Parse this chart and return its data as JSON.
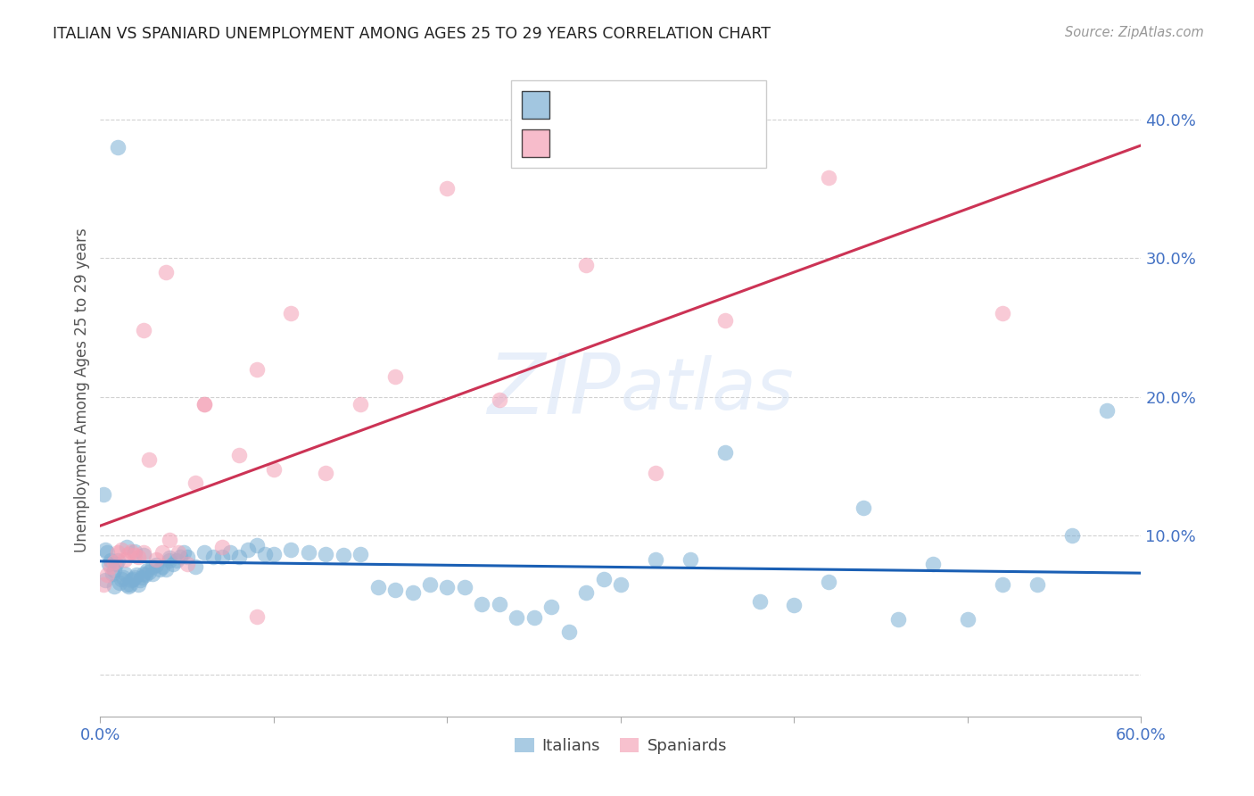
{
  "title": "ITALIAN VS SPANIARD UNEMPLOYMENT AMONG AGES 25 TO 29 YEARS CORRELATION CHART",
  "source": "Source: ZipAtlas.com",
  "ylabel": "Unemployment Among Ages 25 to 29 years",
  "xlim": [
    0.0,
    0.6
  ],
  "ylim": [
    -0.03,
    0.44
  ],
  "yticks": [
    0.0,
    0.1,
    0.2,
    0.3,
    0.4
  ],
  "ytick_labels": [
    "",
    "10.0%",
    "20.0%",
    "30.0%",
    "40.0%"
  ],
  "xticks": [
    0.0,
    0.1,
    0.2,
    0.3,
    0.4,
    0.5,
    0.6
  ],
  "xtick_labels": [
    "0.0%",
    "",
    "",
    "",
    "",
    "",
    "60.0%"
  ],
  "legend_label1": "Italians",
  "legend_label2": "Spaniards",
  "italian_color": "#7bafd4",
  "spaniard_color": "#f4a0b5",
  "trendline_italian_color": "#1a5fb4",
  "trendline_spaniard_color": "#cc3355",
  "watermark": "ZIPatlas",
  "background_color": "#ffffff",
  "axis_color": "#4472C4",
  "legend_text_color": "#333333",
  "legend_value_color": "#4472C4",
  "title_color": "#222222",
  "italians_x": [
    0.002,
    0.003,
    0.004,
    0.005,
    0.006,
    0.007,
    0.008,
    0.009,
    0.01,
    0.011,
    0.012,
    0.013,
    0.014,
    0.015,
    0.016,
    0.017,
    0.018,
    0.019,
    0.02,
    0.021,
    0.022,
    0.023,
    0.024,
    0.025,
    0.026,
    0.027,
    0.028,
    0.03,
    0.032,
    0.034,
    0.036,
    0.038,
    0.04,
    0.042,
    0.044,
    0.046,
    0.048,
    0.05,
    0.055,
    0.06,
    0.065,
    0.07,
    0.075,
    0.08,
    0.085,
    0.09,
    0.095,
    0.1,
    0.11,
    0.12,
    0.13,
    0.14,
    0.15,
    0.16,
    0.17,
    0.18,
    0.19,
    0.2,
    0.21,
    0.22,
    0.23,
    0.24,
    0.25,
    0.26,
    0.27,
    0.28,
    0.29,
    0.3,
    0.32,
    0.34,
    0.36,
    0.38,
    0.4,
    0.42,
    0.44,
    0.46,
    0.48,
    0.5,
    0.52,
    0.54,
    0.56,
    0.58,
    0.003,
    0.008,
    0.015,
    0.02,
    0.025,
    0.03,
    0.04,
    0.01
  ],
  "italians_y": [
    0.13,
    0.09,
    0.088,
    0.08,
    0.082,
    0.073,
    0.075,
    0.08,
    0.082,
    0.066,
    0.069,
    0.07,
    0.073,
    0.065,
    0.064,
    0.065,
    0.068,
    0.069,
    0.07,
    0.072,
    0.065,
    0.068,
    0.07,
    0.073,
    0.072,
    0.075,
    0.074,
    0.078,
    0.079,
    0.076,
    0.078,
    0.076,
    0.082,
    0.08,
    0.082,
    0.085,
    0.088,
    0.085,
    0.078,
    0.088,
    0.085,
    0.085,
    0.088,
    0.085,
    0.09,
    0.093,
    0.087,
    0.087,
    0.09,
    0.088,
    0.087,
    0.086,
    0.087,
    0.063,
    0.061,
    0.059,
    0.065,
    0.063,
    0.063,
    0.051,
    0.051,
    0.041,
    0.041,
    0.049,
    0.031,
    0.059,
    0.069,
    0.065,
    0.083,
    0.083,
    0.16,
    0.053,
    0.05,
    0.067,
    0.12,
    0.04,
    0.08,
    0.04,
    0.065,
    0.065,
    0.1,
    0.19,
    0.068,
    0.064,
    0.092,
    0.089,
    0.086,
    0.073,
    0.084,
    0.38
  ],
  "spaniards_x": [
    0.002,
    0.004,
    0.006,
    0.008,
    0.01,
    0.012,
    0.014,
    0.016,
    0.018,
    0.02,
    0.022,
    0.025,
    0.028,
    0.032,
    0.036,
    0.04,
    0.045,
    0.05,
    0.055,
    0.06,
    0.07,
    0.08,
    0.09,
    0.1,
    0.11,
    0.13,
    0.15,
    0.17,
    0.2,
    0.23,
    0.28,
    0.32,
    0.36,
    0.42,
    0.52,
    0.025,
    0.038,
    0.06,
    0.09
  ],
  "spaniards_y": [
    0.065,
    0.072,
    0.078,
    0.081,
    0.088,
    0.09,
    0.083,
    0.087,
    0.089,
    0.086,
    0.085,
    0.088,
    0.155,
    0.083,
    0.088,
    0.097,
    0.088,
    0.08,
    0.138,
    0.195,
    0.092,
    0.158,
    0.22,
    0.148,
    0.26,
    0.145,
    0.195,
    0.215,
    0.35,
    0.198,
    0.295,
    0.145,
    0.255,
    0.358,
    0.26,
    0.248,
    0.29,
    0.195,
    0.042
  ]
}
